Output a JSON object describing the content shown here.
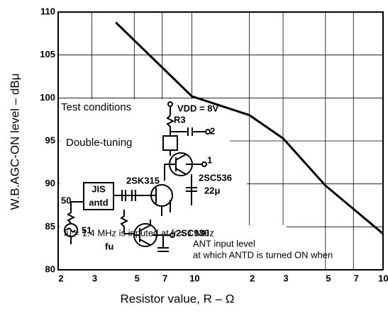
{
  "chart_data": {
    "type": "line",
    "xlabel": "Resistor value, R – Ω",
    "ylabel": "W.B.AGC-ON level – dBμ",
    "xscale": "log",
    "xlim": [
      2,
      100
    ],
    "ylim": [
      80,
      110
    ],
    "xticks": [
      2,
      3,
      5,
      7,
      10,
      {
        "value": 20,
        "label": "2"
      },
      {
        "value": 30,
        "label": "3"
      },
      {
        "value": 50,
        "label": "5"
      },
      {
        "value": 70,
        "label": "7"
      },
      100
    ],
    "yticks": [
      80,
      85,
      90,
      95,
      100,
      105,
      110
    ],
    "grid": true,
    "series": [
      {
        "color": "#000000",
        "x": [
          4,
          10,
          20,
          30,
          50,
          100
        ],
        "values": [
          108.8,
          100.2,
          98,
          95.3,
          89.8,
          84.2
        ]
      }
    ],
    "annotations": [
      "Test conditions",
      "VDD = 8V",
      "R3",
      "2",
      "Double-tuning",
      "1",
      "2SK315",
      "2SC536",
      "22μ",
      "JIS",
      "antd",
      "50",
      "51",
      "fu",
      "2SC930",
      "ANT input level",
      "at which ANTD is turned ON when",
      "fu = 1.4 MHz is inputed at fr = 1 MHz"
    ]
  }
}
